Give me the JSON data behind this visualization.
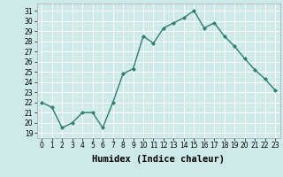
{
  "x": [
    0,
    1,
    2,
    3,
    4,
    5,
    6,
    7,
    8,
    9,
    10,
    11,
    12,
    13,
    14,
    15,
    16,
    17,
    18,
    19,
    20,
    21,
    22,
    23
  ],
  "y": [
    22,
    21.5,
    19.5,
    20,
    21,
    21,
    19.5,
    22,
    24.8,
    25.3,
    28.5,
    27.8,
    29.3,
    29.8,
    30.3,
    31,
    29.3,
    29.8,
    28.5,
    27.5,
    26.3,
    25.2,
    24.3,
    23.2
  ],
  "xlim": [
    -0.5,
    23.5
  ],
  "ylim": [
    18.7,
    31.7
  ],
  "yticks": [
    19,
    20,
    21,
    22,
    23,
    24,
    25,
    26,
    27,
    28,
    29,
    30,
    31
  ],
  "xticks": [
    0,
    1,
    2,
    3,
    4,
    5,
    6,
    7,
    8,
    9,
    10,
    11,
    12,
    13,
    14,
    15,
    16,
    17,
    18,
    19,
    20,
    21,
    22,
    23
  ],
  "xlabel": "Humidex (Indice chaleur)",
  "line_color": "#2e7d6e",
  "marker": "D",
  "marker_size": 2.0,
  "bg_color": "#ceeae8",
  "grid_color": "#ffffff",
  "grid_minor_color": "#e8f5f4",
  "tick_fontsize": 5.5,
  "xlabel_fontsize": 7.5,
  "linewidth": 1.0
}
